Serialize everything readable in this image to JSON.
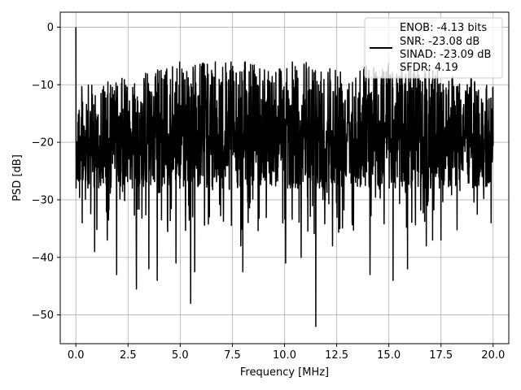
{
  "chart_data": {
    "type": "line",
    "title": "",
    "xlabel": "Frequency [MHz]",
    "ylabel": "PSD [dB]",
    "xlim": [
      -0.75,
      20.75
    ],
    "ylim": [
      -55,
      2.6
    ],
    "xticks": [
      0.0,
      2.5,
      5.0,
      7.5,
      10.0,
      12.5,
      15.0,
      17.5,
      20.0
    ],
    "xtick_labels": [
      "0.0",
      "2.5",
      "5.0",
      "7.5",
      "10.0",
      "12.5",
      "15.0",
      "17.5",
      "20.0"
    ],
    "yticks": [
      0,
      -10,
      -20,
      -30,
      -40,
      -50
    ],
    "ytick_labels": [
      "0",
      "−10",
      "−20",
      "−30",
      "−40",
      "−50"
    ],
    "grid": true,
    "legend_position": "top-right",
    "line_color": "#000000",
    "series": [
      {
        "legend_lines": [
          "ENOB: -4.13 bits",
          "SNR: -23.08 dB",
          "SINAD: -23.09 dB",
          "SFDR: 4.19"
        ],
        "x_range": [
          0,
          20
        ],
        "approx_points": 2048,
        "dc_peak": [
          0.0,
          0.0
        ],
        "noise_floor_mean_db": -19,
        "upper_envelope_db": [
          [
            0.0,
            -10
          ],
          [
            1.0,
            -10
          ],
          [
            2.0,
            -9
          ],
          [
            3.0,
            -8
          ],
          [
            4.0,
            -7
          ],
          [
            5.0,
            -6
          ],
          [
            7.5,
            -6
          ],
          [
            10.0,
            -6
          ],
          [
            12.5,
            -6
          ],
          [
            15.0,
            -6
          ],
          [
            17.5,
            -7
          ],
          [
            20.0,
            -10
          ]
        ],
        "notable_dips": [
          [
            0.3,
            -34
          ],
          [
            0.9,
            -39
          ],
          [
            1.5,
            -37
          ],
          [
            1.95,
            -43
          ],
          [
            2.9,
            -45.5
          ],
          [
            3.5,
            -42
          ],
          [
            3.9,
            -44
          ],
          [
            4.8,
            -41
          ],
          [
            5.5,
            -48
          ],
          [
            5.7,
            -42.5
          ],
          [
            7.9,
            -38
          ],
          [
            8.0,
            -42.5
          ],
          [
            10.05,
            -41
          ],
          [
            10.8,
            -40
          ],
          [
            11.5,
            -52
          ],
          [
            12.3,
            -38
          ],
          [
            14.1,
            -43
          ],
          [
            15.2,
            -44
          ],
          [
            15.9,
            -42
          ],
          [
            16.8,
            -38
          ],
          [
            17.1,
            -37
          ],
          [
            17.5,
            -37
          ],
          [
            19.9,
            -34
          ]
        ]
      }
    ]
  }
}
